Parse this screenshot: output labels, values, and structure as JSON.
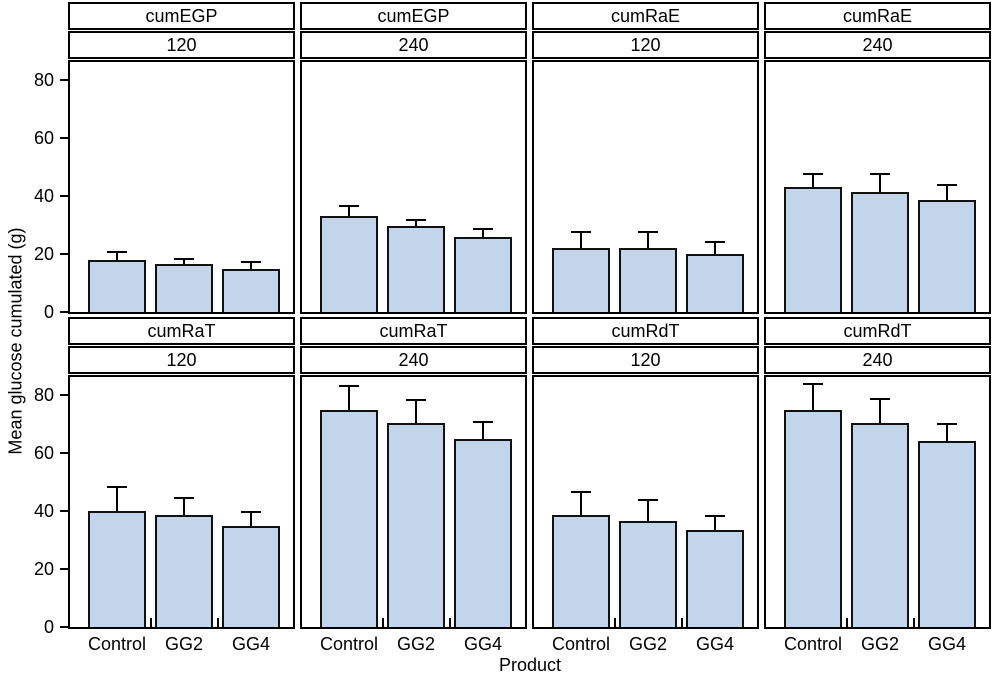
{
  "figure": {
    "ylabel": "Mean glucose cumulated (g)",
    "xlabel": "Product"
  },
  "chart_data": {
    "type": "bar",
    "layout": "trellis 2 rows x 4 columns",
    "title": "",
    "ylabel": "Mean glucose cumulated (g)",
    "xlabel": "Product",
    "categories": [
      "Control",
      "GG2",
      "GG4"
    ],
    "yticks": [
      0,
      20,
      40,
      60,
      80
    ],
    "ylim": [
      0,
      86
    ],
    "grid": false,
    "legend": "none",
    "bar_fill": "#c3d5ea",
    "bar_border": "#111111",
    "error_bars": "upper standard error with cap",
    "panels": [
      {
        "variable": "cumEGP",
        "time": "120",
        "row": 0,
        "values": [
          18,
          16.5,
          15
        ],
        "errors": [
          3,
          2,
          2.5
        ]
      },
      {
        "variable": "cumEGP",
        "time": "240",
        "row": 0,
        "values": [
          33,
          29.5,
          26
        ],
        "errors": [
          4,
          2.5,
          3
        ]
      },
      {
        "variable": "cumRaE",
        "time": "120",
        "row": 0,
        "values": [
          22,
          22,
          20
        ],
        "errors": [
          6,
          6,
          4.5
        ]
      },
      {
        "variable": "cumRaE",
        "time": "240",
        "row": 0,
        "values": [
          43,
          41.5,
          38.5
        ],
        "errors": [
          5,
          6.5,
          5.5
        ]
      },
      {
        "variable": "cumRaT",
        "time": "120",
        "row": 1,
        "values": [
          40,
          38.5,
          35
        ],
        "errors": [
          8.5,
          6.5,
          5
        ]
      },
      {
        "variable": "cumRaT",
        "time": "240",
        "row": 1,
        "values": [
          75,
          70.5,
          65
        ],
        "errors": [
          8.5,
          8,
          6
        ]
      },
      {
        "variable": "cumRdT",
        "time": "120",
        "row": 1,
        "values": [
          38.5,
          36.5,
          33.5
        ],
        "errors": [
          8.5,
          7.5,
          5
        ]
      },
      {
        "variable": "cumRdT",
        "time": "240",
        "row": 1,
        "values": [
          75,
          70.5,
          64
        ],
        "errors": [
          9,
          8.5,
          6.5
        ]
      }
    ]
  }
}
